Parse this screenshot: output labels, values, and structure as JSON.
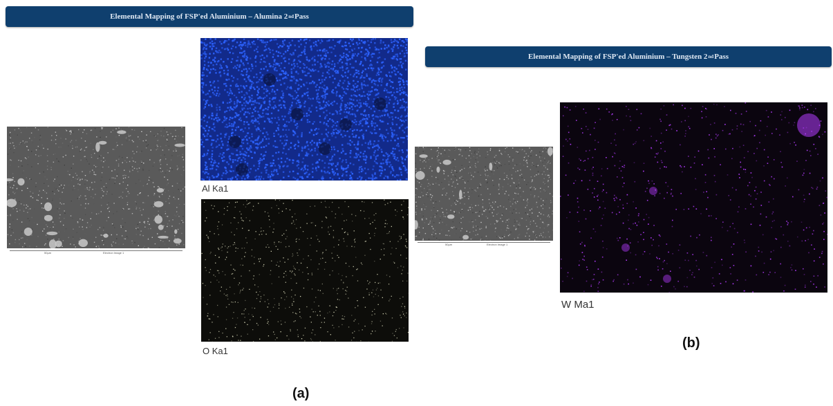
{
  "panel_a": {
    "banner": {
      "text": "Elemental Mapping of FSP'ed Aluminium – Alumina 2",
      "sup": "nd",
      "suffix": " Pass"
    },
    "sem": {
      "scale_label": "50µm",
      "image_label": "Electron Image 1"
    },
    "maps": [
      {
        "caption": "Al Ka1",
        "color": "#2d63ff"
      },
      {
        "caption": "O Ka1",
        "color": "#d8d8b8"
      }
    ],
    "figure_label": "(a)"
  },
  "panel_b": {
    "banner": {
      "text": "Elemental Mapping of FSP'ed Aluminium – Tungsten 2",
      "sup": "nd",
      "suffix": " Pass"
    },
    "sem": {
      "scale_label": "50µm",
      "image_label": "Electron Image 1"
    },
    "maps": [
      {
        "caption": "W Ma1",
        "color": "#b43cff"
      }
    ],
    "figure_label": "(b)"
  }
}
